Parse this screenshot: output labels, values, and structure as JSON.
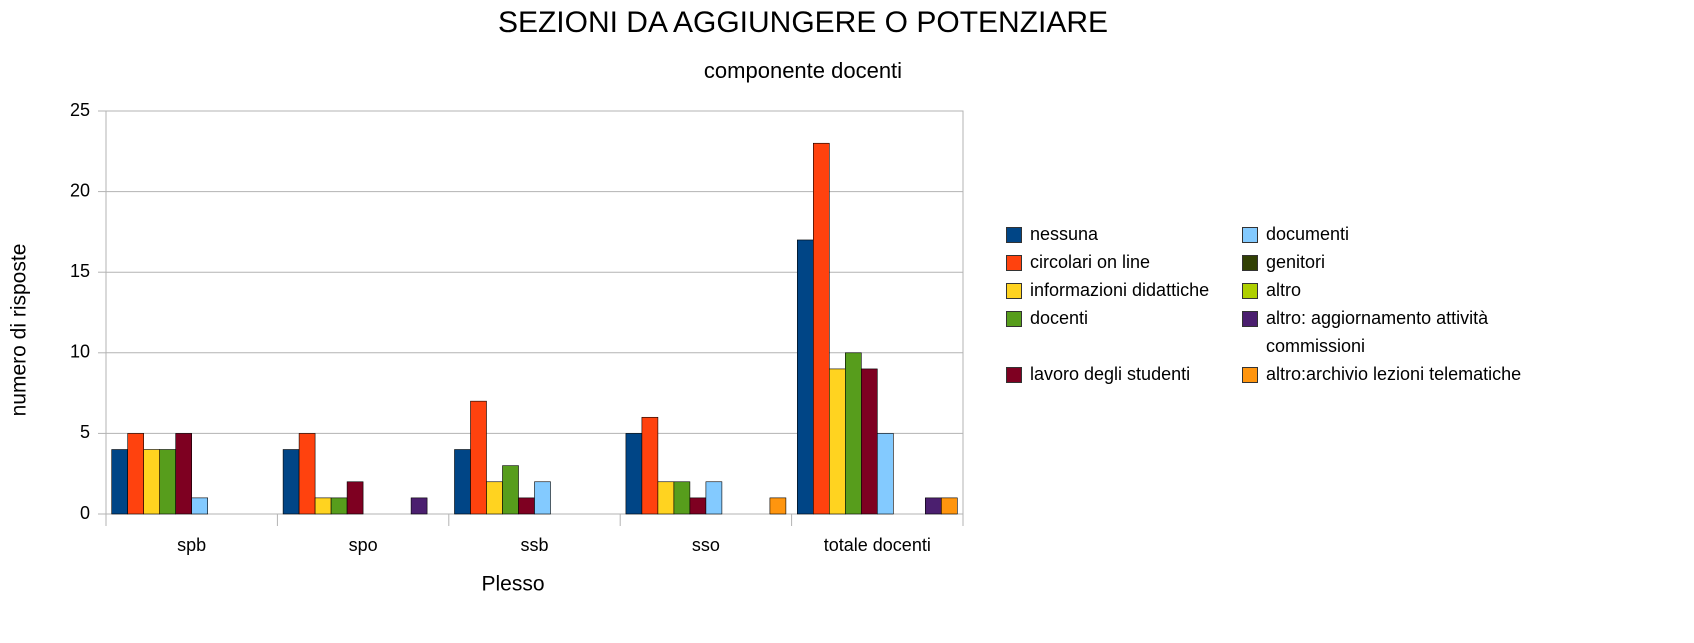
{
  "chart_data": {
    "type": "bar",
    "title": "SEZIONI DA AGGIUNGERE O POTENZIARE",
    "subtitle": "componente docenti",
    "x_label": "Plesso",
    "y_label": "numero di risposte",
    "categories": [
      "spb",
      "spo",
      "ssb",
      "sso",
      "totale docenti"
    ],
    "series": [
      {
        "name": "nessuna",
        "color": "#004586",
        "values": [
          4,
          4,
          4,
          5,
          17
        ]
      },
      {
        "name": "circolari on line",
        "color": "#ff420e",
        "values": [
          5,
          5,
          7,
          6,
          23
        ]
      },
      {
        "name": "informazioni didattiche",
        "color": "#ffd320",
        "values": [
          4,
          1,
          2,
          2,
          9
        ]
      },
      {
        "name": "docenti",
        "color": "#579d1c",
        "values": [
          4,
          1,
          3,
          2,
          10
        ]
      },
      {
        "name": "lavoro degli studenti",
        "color": "#7e0021",
        "values": [
          5,
          2,
          1,
          1,
          9
        ]
      },
      {
        "name": "documenti",
        "color": "#83caff",
        "values": [
          1,
          0,
          2,
          2,
          5
        ]
      },
      {
        "name": "genitori",
        "color": "#314004",
        "values": [
          0,
          0,
          0,
          0,
          0
        ]
      },
      {
        "name": "altro",
        "color": "#aecf00",
        "values": [
          0,
          0,
          0,
          0,
          0
        ]
      },
      {
        "name": "altro: aggiornamento attività commissioni",
        "color": "#4b1f6f",
        "values": [
          0,
          1,
          0,
          0,
          1
        ]
      },
      {
        "name": "altro:archivio lezioni telematiche",
        "color": "#ff950e",
        "values": [
          0,
          0,
          0,
          1,
          1
        ]
      }
    ],
    "ylim": [
      0,
      25
    ],
    "yticks": [
      0,
      5,
      10,
      15,
      20,
      25
    ],
    "grid": true,
    "legend": "right"
  }
}
